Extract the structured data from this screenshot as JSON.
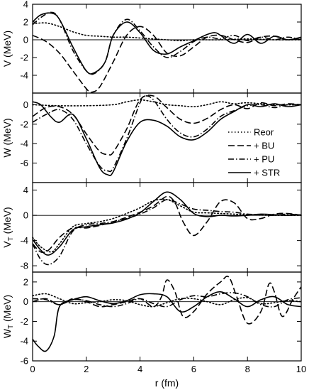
{
  "chart_data": [
    {
      "type": "line",
      "id": "V",
      "ylabel": "V (MeV)",
      "ylabel_sub": "",
      "xlim": [
        0,
        10
      ],
      "ylim": [
        -6,
        4
      ],
      "yticks": [
        4,
        2,
        0,
        -2,
        -4
      ],
      "zero_line": true,
      "series": [
        {
          "name": "Reor",
          "style": "dotted",
          "x": [
            0,
            0.5,
            1,
            1.5,
            2,
            2.5,
            3,
            3.5,
            4,
            4.5,
            5,
            5.5,
            6,
            7,
            8,
            9,
            10
          ],
          "y": [
            1.8,
            1.9,
            1.5,
            0.9,
            0.5,
            0.4,
            0.3,
            0.3,
            0.2,
            0.1,
            0,
            -0.1,
            0,
            0,
            0.1,
            0,
            0
          ]
        },
        {
          "name": "+ BU",
          "style": "dashed",
          "x": [
            0,
            0.5,
            1,
            1.5,
            2,
            2.2,
            2.5,
            3,
            3.5,
            4,
            4.5,
            5,
            5.5,
            6,
            6.5,
            7,
            7.5,
            8,
            8.5,
            9,
            9.5,
            10
          ],
          "y": [
            0.5,
            -0.2,
            -1.5,
            -3.5,
            -5.5,
            -5.9,
            -5.3,
            -2.5,
            0.5,
            1.5,
            0.5,
            -1.5,
            -1.8,
            -0.8,
            0.3,
            0.5,
            0,
            -0.3,
            0.3,
            0.4,
            0,
            0.2
          ]
        },
        {
          "name": "+ PU",
          "style": "dashdot",
          "x": [
            0,
            0.3,
            0.7,
            1,
            1.5,
            2,
            2.3,
            2.7,
            3,
            3.5,
            4,
            4.5,
            5,
            5.5,
            6,
            6.5,
            7,
            7.5,
            8,
            8.5,
            9,
            9.5,
            10
          ],
          "y": [
            1.7,
            2.5,
            3.1,
            2.3,
            -1.2,
            -3.5,
            -3.8,
            -2.5,
            0.5,
            2.3,
            1,
            -0.8,
            -2,
            -1.3,
            -0.2,
            0.3,
            0.1,
            0.5,
            -0.1,
            0.3,
            0,
            0.3,
            0
          ]
        },
        {
          "name": "+ STR",
          "style": "solid",
          "x": [
            0,
            0.3,
            0.7,
            1,
            1.5,
            2,
            2.3,
            2.7,
            3,
            3.5,
            4,
            4.5,
            5,
            5.5,
            6,
            6.5,
            6.8,
            7,
            7.5,
            8,
            8.5,
            9,
            9.5,
            10
          ],
          "y": [
            2,
            2.8,
            3,
            2.3,
            -0.8,
            -3.5,
            -3.7,
            -2.5,
            0.5,
            2,
            0.8,
            -1.2,
            -1.6,
            -0.8,
            -0.1,
            0.6,
            0.8,
            0.5,
            -0.4,
            0.6,
            -0.4,
            0.4,
            0,
            0.3
          ]
        }
      ]
    },
    {
      "type": "line",
      "id": "W",
      "ylabel": "W (MeV)",
      "ylabel_sub": "",
      "xlim": [
        0,
        10
      ],
      "ylim": [
        -8,
        1.2
      ],
      "yticks": [
        0,
        -2,
        -4,
        -6
      ],
      "zero_line": false,
      "series": [
        {
          "name": "Reor",
          "style": "dotted",
          "x": [
            0,
            1,
            2,
            3,
            3.5,
            4,
            4.5,
            5,
            5.5,
            6,
            6.5,
            7,
            7.5,
            8,
            9,
            10
          ],
          "y": [
            0,
            -0.1,
            -0.1,
            0,
            0.3,
            0.5,
            0.3,
            0,
            -0.1,
            -0.2,
            0,
            0.3,
            0.1,
            0.2,
            0,
            0
          ]
        },
        {
          "name": "+ BU",
          "style": "dashed",
          "x": [
            0,
            0.5,
            1,
            1.5,
            2,
            2.5,
            2.8,
            3,
            3.5,
            4,
            4.5,
            5,
            5.5,
            6,
            6.5,
            7,
            7.5,
            8,
            8.5,
            9,
            9.5,
            10
          ],
          "y": [
            -1.2,
            -0.3,
            -0.2,
            -1,
            -3,
            -4.8,
            -5.1,
            -4.9,
            -2.5,
            0.5,
            0.9,
            -0.3,
            -1.5,
            -1.9,
            -1.4,
            -0.5,
            0,
            -0.4,
            0.2,
            -0.1,
            0.1,
            0
          ]
        },
        {
          "name": "+ PU",
          "style": "dashdot",
          "x": [
            0,
            0.5,
            1,
            1.5,
            2,
            2.5,
            2.8,
            3,
            3.5,
            4,
            4.2,
            4.5,
            5,
            5.5,
            6,
            6.5,
            7,
            7.5,
            8,
            8.5,
            9,
            9.5,
            10
          ],
          "y": [
            -1.8,
            -1,
            -0.5,
            -1.5,
            -4,
            -6.3,
            -6.8,
            -6.5,
            -3.5,
            0.2,
            0.9,
            0.5,
            -1.5,
            -2.9,
            -3.3,
            -2.5,
            -1.2,
            -0.6,
            -0.1,
            0,
            -0.3,
            0,
            0
          ]
        },
        {
          "name": "+ STR",
          "style": "solid",
          "x": [
            0,
            0.3,
            0.7,
            1,
            1.5,
            2,
            2.5,
            2.8,
            3,
            3.5,
            4,
            4.5,
            5,
            5.5,
            6,
            6.5,
            7,
            7.5,
            8,
            8.5,
            9,
            9.5,
            10
          ],
          "y": [
            0.3,
            0,
            -1.3,
            -1.8,
            -1,
            -3.5,
            -6.5,
            -7.2,
            -6.9,
            -3.8,
            -1.8,
            -1.6,
            -2.2,
            -3.3,
            -3.6,
            -2.8,
            -1.5,
            -0.7,
            0,
            -0.2,
            0.1,
            -0.2,
            0
          ]
        }
      ]
    },
    {
      "type": "line",
      "id": "VT",
      "ylabel": "V",
      "ylabel_sub": "T",
      "ylabel_unit": " (MeV)",
      "xlim": [
        0,
        10
      ],
      "ylim": [
        -9,
        5.2
      ],
      "yticks": [
        4,
        0,
        -4,
        -8
      ],
      "zero_line": true,
      "series": [
        {
          "name": "Reor",
          "style": "dotted",
          "x": [
            0,
            0.3,
            0.7,
            1,
            1.5,
            2,
            2.5,
            3,
            3.5,
            4,
            4.5,
            5,
            5.5,
            6,
            6.5,
            7,
            8,
            9,
            10
          ],
          "y": [
            -3.5,
            -5,
            -5.8,
            -4.5,
            -1.8,
            -1.3,
            -1,
            -0.5,
            0.3,
            1.2,
            2.3,
            2.5,
            1.5,
            0.5,
            0.4,
            0.3,
            0.1,
            0,
            0
          ]
        },
        {
          "name": "+ BU",
          "style": "dashed",
          "x": [
            0,
            0.3,
            0.6,
            1,
            1.5,
            2,
            2.5,
            3,
            3.5,
            4,
            4.5,
            5,
            5.3,
            5.6,
            6,
            6.5,
            7,
            7.5,
            8,
            8.5,
            9,
            9.5,
            10
          ],
          "y": [
            -4.5,
            -5.8,
            -5.5,
            -3.5,
            -2,
            -2,
            -1.6,
            -1,
            -0.3,
            0.5,
            1.5,
            3,
            2,
            -1,
            -3.2,
            -1,
            2.2,
            2,
            -0.5,
            -0.5,
            0.2,
            0.3,
            0
          ]
        },
        {
          "name": "+ PU",
          "style": "dashdot",
          "x": [
            0,
            0.3,
            0.6,
            1,
            1.5,
            2,
            2.5,
            3,
            3.5,
            4,
            4.5,
            5,
            5.5,
            6,
            6.5,
            7,
            7.5,
            8,
            8.5,
            9,
            9.5,
            10
          ],
          "y": [
            -4.5,
            -7,
            -7.8,
            -6.5,
            -2.5,
            -1.5,
            -1.3,
            -1,
            -0.5,
            0.2,
            1.2,
            2.5,
            1.8,
            1,
            0.8,
            0.6,
            0.5,
            0.2,
            0.1,
            0,
            0.2,
            0
          ]
        },
        {
          "name": "+ STR",
          "style": "solid",
          "x": [
            0,
            0.3,
            0.6,
            1,
            1.5,
            2,
            2.5,
            3,
            3.5,
            4,
            4.5,
            5,
            5.5,
            6,
            6.5,
            7,
            7.5,
            8,
            8.5,
            9,
            9.5,
            10
          ],
          "y": [
            -3.8,
            -5.5,
            -6.3,
            -5,
            -2.3,
            -1.8,
            -1.5,
            -1.2,
            -0.6,
            0.4,
            2.2,
            3.7,
            2.5,
            0.3,
            -0.2,
            0,
            -0.1,
            0,
            0.2,
            0.1,
            0,
            0.1
          ]
        }
      ]
    },
    {
      "type": "line",
      "id": "WT",
      "ylabel": "W",
      "ylabel_sub": "T",
      "ylabel_unit": " (MeV)",
      "xlabel": "r (fm)",
      "xlim": [
        0,
        10
      ],
      "xticks": [
        0,
        2,
        4,
        6,
        8,
        10
      ],
      "ylim": [
        -6,
        3
      ],
      "yticks": [
        2,
        0,
        -2,
        -4,
        -6
      ],
      "zero_line": true,
      "series": [
        {
          "name": "Reor",
          "style": "dotted",
          "x": [
            0,
            0.5,
            1,
            1.5,
            2,
            2.5,
            3,
            3.5,
            4,
            4.5,
            5,
            5.5,
            6,
            6.5,
            7,
            7.5,
            8,
            8.5,
            9,
            9.5,
            10
          ],
          "y": [
            0.6,
            0.8,
            0.3,
            -0.2,
            -0.1,
            0,
            0.2,
            0.1,
            -0.3,
            -0.5,
            -0.1,
            0.3,
            0.3,
            0,
            -0.3,
            0.2,
            0.4,
            -0.2,
            -0.1,
            0.1,
            0
          ]
        },
        {
          "name": "+ BU",
          "style": "dashed",
          "x": [
            0,
            0.5,
            1,
            1.5,
            2,
            2.5,
            3,
            3.5,
            4,
            4.5,
            4.8,
            5,
            5.3,
            5.6,
            6,
            6.5,
            7,
            7.3,
            7.6,
            8,
            8.5,
            8.8,
            9,
            9.3,
            9.7,
            10
          ],
          "y": [
            0,
            0.3,
            -0.3,
            0.3,
            0,
            -0.5,
            -0.3,
            0,
            0.3,
            -0.5,
            0.5,
            2.2,
            1,
            -1.5,
            -1,
            0.8,
            2,
            2.5,
            0.5,
            -2.2,
            -1,
            1.8,
            1,
            -1.5,
            0.3,
            1.5
          ]
        },
        {
          "name": "+ PU",
          "style": "dashdot",
          "x": [
            0,
            0.5,
            1,
            1.5,
            2,
            2.5,
            3,
            3.5,
            4,
            4.5,
            5,
            5.5,
            6,
            6.5,
            7,
            7.5,
            8,
            8.5,
            9,
            9.5,
            10
          ],
          "y": [
            0.3,
            0.2,
            -0.3,
            0.2,
            0.1,
            -0.3,
            -0.5,
            -0.2,
            0.3,
            -0.2,
            -0.5,
            0.2,
            0.6,
            0.5,
            0.8,
            0.9,
            0.5,
            -0.3,
            -0.5,
            0.2,
            0.4
          ]
        },
        {
          "name": "+ STR",
          "style": "solid",
          "x": [
            0,
            0.2,
            0.5,
            0.8,
            1,
            1.5,
            2,
            2.5,
            3,
            3.5,
            4,
            4.5,
            5,
            5.5,
            6,
            6.5,
            7,
            7.5,
            8,
            8.5,
            9,
            9.5,
            10
          ],
          "y": [
            -3.8,
            -4.5,
            -5,
            -3.5,
            -0.5,
            0.2,
            0.5,
            0.1,
            -0.2,
            0.1,
            0.7,
            0.8,
            0.5,
            -1,
            -0.5,
            0.5,
            1,
            0.3,
            -0.5,
            0.2,
            0.5,
            -0.3,
            -0.5
          ]
        }
      ]
    }
  ],
  "legend": {
    "placement": "panel-2-right",
    "entries": [
      "Reor",
      "+ BU",
      "+ PU",
      "+ STR"
    ]
  }
}
